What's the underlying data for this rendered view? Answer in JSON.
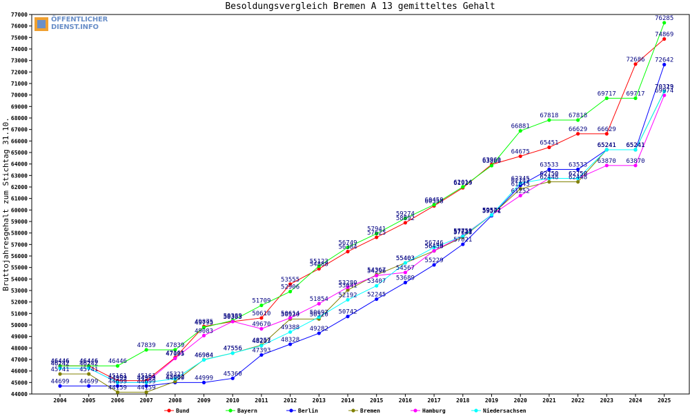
{
  "chart_data": {
    "type": "line",
    "title": "Besoldungsvergleich Bremen A 13 gemitteltes Gehalt",
    "ylabel": "Bruttojahresgehalt zum Stichtag 31.10.",
    "xlabel": "",
    "ylim": [
      44000,
      77000
    ],
    "ytick_step": 1000,
    "grid": false,
    "legend": "bottom",
    "categories": [
      "2004",
      "2005",
      "2006",
      "2007",
      "2008",
      "2009",
      "2010",
      "2011",
      "2012",
      "2013",
      "2014",
      "2015",
      "2016",
      "2017",
      "2018",
      "2019",
      "2020",
      "2021",
      "2022",
      "2023",
      "2024",
      "2025"
    ],
    "series": [
      {
        "name": "Bund",
        "color": "#ff0000",
        "values": [
          46446,
          46446,
          45161,
          45161,
          47161,
          49875,
          50303,
          50610,
          53555,
          54888,
          56384,
          57625,
          58892,
          60358,
          61929,
          63960,
          64675,
          65451,
          66629,
          66629,
          72686,
          74869
        ]
      },
      {
        "name": "Bayern",
        "color": "#00ff00",
        "values": [
          46446,
          46446,
          46446,
          47839,
          47839,
          49795,
          50389,
          51709,
          52906,
          55123,
          56749,
          57941,
          59274,
          60459,
          62014,
          63860,
          66881,
          67818,
          67818,
          69717,
          69717,
          76285
        ]
      },
      {
        "name": "Berlin",
        "color": "#0000ff",
        "values": [
          44699,
          44699,
          44699,
          44699,
          44999,
          44999,
          45360,
          47393,
          48328,
          49282,
          50742,
          52245,
          53689,
          55229,
          57021,
          59501,
          62142,
          63533,
          63533,
          65241,
          65241,
          72642
        ]
      },
      {
        "name": "Bremen",
        "color": "#808000",
        "values": [
          45741,
          45741,
          44159,
          44159,
          45082,
          46984,
          47556,
          48257,
          50520,
          50520,
          53041,
          54367,
          55403,
          56438,
          57643,
          59572,
          61845,
          62448,
          62448,
          65241,
          65241,
          70323
        ]
      },
      {
        "name": "Hamburg",
        "color": "#ff00ff",
        "values": [
          46242,
          46242,
          44999,
          44999,
          47095,
          49083,
          50303,
          49670,
          50614,
          51854,
          53280,
          54296,
          54567,
          56459,
          57759,
          59572,
          61252,
          62750,
          62750,
          63870,
          63870,
          69974
        ]
      },
      {
        "name": "Niedersachsen",
        "color": "#00ffff",
        "values": [
          46242,
          46242,
          44999,
          44999,
          45321,
          46964,
          47556,
          48203,
          49388,
          50697,
          52192,
          53407,
          55403,
          56746,
          57721,
          59572,
          62345,
          62750,
          62750,
          65241,
          65241,
          70319
        ]
      }
    ]
  }
}
